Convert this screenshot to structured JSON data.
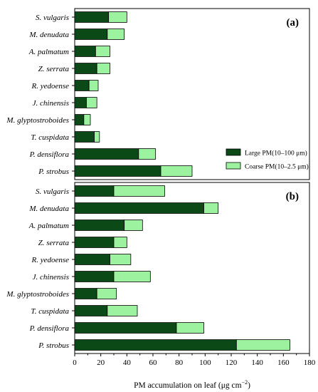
{
  "chart_data": [
    {
      "type": "bar",
      "orientation": "horizontal",
      "stacked": true,
      "panel_label": "(a)",
      "categories": [
        "S. vulgaris",
        "M. denudata",
        "A. palmatum",
        "Z. serrata",
        "R. yedoense",
        "J. chinensis",
        "M. glyptostroboides",
        "T. cuspidata",
        "P. densiflora",
        "P. strobus"
      ],
      "series": [
        {
          "name": "Large PM(10–100 μm)",
          "values": [
            26,
            25,
            16,
            17,
            11,
            9,
            7,
            15,
            49,
            66
          ],
          "color": "#0b4a16"
        },
        {
          "name": "Coarse PM(10–2.5 μm)",
          "values": [
            14,
            13,
            11,
            10,
            7,
            8,
            5,
            4,
            13,
            24
          ],
          "color": "#9cf29f"
        }
      ],
      "xlim": [
        0,
        180
      ],
      "legend": {
        "location": "lower-right"
      }
    },
    {
      "type": "bar",
      "orientation": "horizontal",
      "stacked": true,
      "panel_label": "(b)",
      "categories": [
        "S. vulgaris",
        "M. denudata",
        "A. palmatum",
        "Z. serrata",
        "R. yedoense",
        "J. chinensis",
        "M. glyptostroboides",
        "T. cuspidata",
        "P. densiflora",
        "P. strobus"
      ],
      "series": [
        {
          "name": "Large PM(10–100 μm)",
          "values": [
            30,
            99,
            38,
            30,
            27,
            30,
            17,
            25,
            78,
            124
          ],
          "color": "#0b4a16"
        },
        {
          "name": "Coarse PM(10–2.5 μm)",
          "values": [
            39,
            11,
            14,
            10,
            16,
            28,
            15,
            23,
            21,
            41
          ],
          "color": "#9cf29f"
        }
      ],
      "xlim": [
        0,
        180
      ],
      "xticks": [
        0,
        20,
        40,
        60,
        80,
        100,
        120,
        140,
        160,
        180
      ],
      "xlabel": "PM accumulation on leaf (μg cm",
      "xlabel_sup": "−2",
      "xlabel_end": ")"
    }
  ]
}
